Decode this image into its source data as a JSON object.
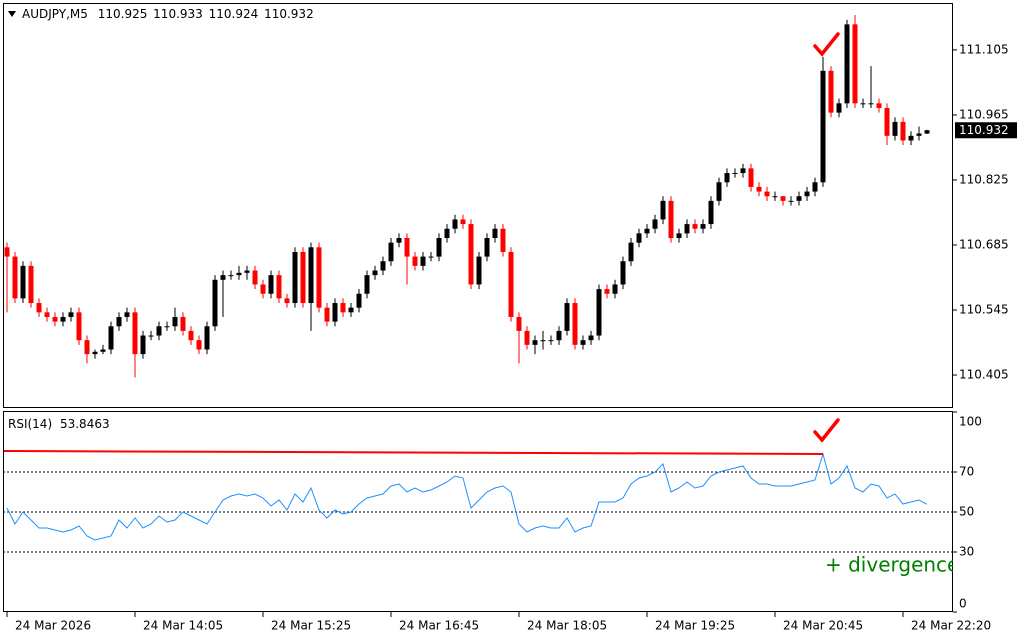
{
  "chart_data": {
    "type": "candlestick",
    "symbol": "AUDJPY,M5",
    "categories": [
      "24 Mar 2026",
      null,
      null,
      null,
      null,
      null,
      null,
      null,
      null,
      null,
      null,
      null,
      null,
      null,
      null,
      null,
      "24 Mar 14:05",
      null,
      null,
      null,
      null,
      null,
      null,
      null,
      null,
      null,
      null,
      null,
      null,
      null,
      null,
      null,
      "24 Mar 15:25",
      null,
      null,
      null,
      null,
      null,
      null,
      null,
      null,
      null,
      null,
      null,
      null,
      null,
      null,
      null,
      "24 Mar 16:45",
      null,
      null,
      null,
      null,
      null,
      null,
      null,
      null,
      null,
      null,
      null,
      null,
      null,
      null,
      null,
      "24 Mar 18:05",
      null,
      null,
      null,
      null,
      null,
      null,
      null,
      null,
      null,
      null,
      null,
      null,
      null,
      null,
      null,
      "24 Mar 19:25",
      null,
      null,
      null,
      null,
      null,
      null,
      null,
      null,
      null,
      null,
      null,
      null,
      null,
      null,
      null,
      "24 Mar 20:45",
      null,
      null,
      null,
      null,
      null,
      null,
      null,
      null,
      null,
      null,
      null,
      null,
      null,
      null,
      null,
      "24 Mar 22:20",
      null,
      null,
      null
    ],
    "open": [
      110.68,
      110.66,
      110.57,
      110.64,
      110.56,
      110.54,
      110.53,
      110.52,
      110.53,
      110.54,
      110.48,
      110.45,
      110.455,
      110.46,
      110.51,
      110.53,
      110.54,
      110.45,
      110.49,
      110.49,
      110.51,
      110.51,
      110.53,
      110.5,
      110.48,
      110.46,
      110.51,
      110.61,
      110.62,
      110.62,
      110.625,
      110.63,
      110.6,
      110.58,
      110.62,
      110.57,
      110.56,
      110.67,
      110.56,
      110.68,
      110.55,
      110.52,
      110.56,
      110.54,
      110.55,
      110.58,
      110.62,
      110.63,
      110.65,
      110.69,
      110.7,
      110.66,
      110.64,
      110.66,
      110.66,
      110.7,
      110.72,
      110.74,
      110.73,
      110.6,
      110.66,
      110.7,
      110.72,
      110.67,
      110.53,
      110.5,
      110.47,
      110.48,
      110.48,
      110.48,
      110.5,
      110.56,
      110.47,
      110.48,
      110.49,
      110.59,
      110.58,
      110.6,
      110.65,
      110.69,
      110.71,
      110.72,
      110.74,
      110.78,
      110.7,
      110.71,
      110.73,
      110.72,
      110.73,
      110.78,
      110.82,
      110.84,
      110.84,
      110.85,
      110.81,
      110.8,
      110.79,
      110.79,
      110.78,
      110.78,
      110.79,
      110.8,
      110.82,
      111.06,
      110.97,
      110.99,
      111.16,
      110.99,
      110.99,
      110.99,
      110.98,
      110.92,
      110.95,
      110.91,
      110.92,
      110.925
    ],
    "high": [
      110.69,
      110.67,
      110.65,
      110.65,
      110.57,
      110.55,
      110.54,
      110.54,
      110.55,
      110.55,
      110.49,
      110.46,
      110.47,
      110.52,
      110.54,
      110.55,
      110.55,
      110.5,
      110.5,
      110.52,
      110.52,
      110.55,
      110.54,
      110.51,
      110.49,
      110.52,
      110.62,
      110.63,
      110.63,
      110.64,
      110.64,
      110.64,
      110.61,
      110.63,
      110.63,
      110.58,
      110.68,
      110.68,
      110.69,
      110.69,
      110.56,
      110.57,
      110.57,
      110.56,
      110.59,
      110.63,
      110.64,
      110.66,
      110.7,
      110.71,
      110.71,
      110.67,
      110.67,
      110.67,
      110.71,
      110.73,
      110.75,
      110.75,
      110.74,
      110.67,
      110.71,
      110.73,
      110.73,
      110.68,
      110.54,
      110.51,
      110.49,
      110.5,
      110.49,
      110.51,
      110.57,
      110.57,
      110.49,
      110.5,
      110.6,
      110.6,
      110.61,
      110.66,
      110.7,
      110.72,
      110.73,
      110.75,
      110.79,
      110.79,
      110.72,
      110.74,
      110.74,
      110.74,
      110.79,
      110.83,
      110.85,
      110.85,
      110.86,
      110.86,
      110.82,
      110.81,
      110.8,
      110.79,
      110.79,
      110.8,
      110.81,
      110.83,
      111.09,
      111.07,
      111.0,
      111.17,
      111.18,
      111.0,
      111.07,
      111.0,
      110.99,
      110.96,
      110.96,
      110.93,
      110.94,
      110.933
    ],
    "low": [
      110.54,
      110.56,
      110.56,
      110.55,
      110.53,
      110.52,
      110.51,
      110.51,
      110.52,
      110.47,
      110.43,
      110.44,
      110.45,
      110.45,
      110.5,
      110.52,
      110.4,
      110.44,
      110.48,
      110.48,
      110.5,
      110.5,
      110.49,
      110.47,
      110.45,
      110.45,
      110.5,
      110.53,
      110.61,
      110.61,
      110.61,
      110.59,
      110.57,
      110.57,
      110.56,
      110.55,
      110.55,
      110.55,
      110.5,
      110.54,
      110.51,
      110.51,
      110.53,
      110.53,
      110.54,
      110.57,
      110.61,
      110.62,
      110.64,
      110.68,
      110.6,
      110.63,
      110.63,
      110.65,
      110.65,
      110.69,
      110.71,
      110.72,
      110.59,
      110.59,
      110.65,
      110.69,
      110.66,
      110.52,
      110.43,
      110.46,
      110.45,
      110.46,
      110.47,
      110.47,
      110.49,
      110.46,
      110.46,
      110.47,
      110.48,
      110.57,
      110.57,
      110.59,
      110.64,
      110.68,
      110.7,
      110.71,
      110.73,
      110.69,
      110.69,
      110.7,
      110.71,
      110.71,
      110.72,
      110.77,
      110.81,
      110.83,
      110.83,
      110.8,
      110.79,
      110.78,
      110.78,
      110.77,
      110.77,
      110.77,
      110.78,
      110.79,
      110.81,
      110.96,
      110.96,
      110.98,
      110.98,
      110.98,
      110.98,
      110.97,
      110.9,
      110.91,
      110.9,
      110.9,
      110.91,
      110.924
    ],
    "close": [
      110.66,
      110.57,
      110.64,
      110.56,
      110.54,
      110.53,
      110.52,
      110.53,
      110.54,
      110.48,
      110.45,
      110.455,
      110.46,
      110.51,
      110.53,
      110.54,
      110.45,
      110.49,
      110.49,
      110.51,
      110.51,
      110.53,
      110.5,
      110.48,
      110.46,
      110.51,
      110.61,
      110.62,
      110.62,
      110.625,
      110.63,
      110.6,
      110.58,
      110.62,
      110.57,
      110.56,
      110.67,
      110.56,
      110.68,
      110.55,
      110.52,
      110.56,
      110.54,
      110.55,
      110.58,
      110.62,
      110.63,
      110.65,
      110.69,
      110.7,
      110.66,
      110.64,
      110.66,
      110.66,
      110.7,
      110.72,
      110.74,
      110.73,
      110.6,
      110.66,
      110.7,
      110.72,
      110.67,
      110.53,
      110.5,
      110.47,
      110.48,
      110.48,
      110.48,
      110.5,
      110.56,
      110.47,
      110.48,
      110.49,
      110.59,
      110.58,
      110.6,
      110.65,
      110.69,
      110.71,
      110.72,
      110.74,
      110.78,
      110.7,
      110.71,
      110.73,
      110.72,
      110.73,
      110.78,
      110.82,
      110.84,
      110.84,
      110.85,
      110.81,
      110.8,
      110.79,
      110.79,
      110.78,
      110.78,
      110.79,
      110.8,
      110.82,
      111.06,
      110.97,
      110.99,
      111.16,
      110.99,
      110.99,
      110.99,
      110.98,
      110.92,
      110.95,
      110.91,
      110.92,
      110.925,
      110.932
    ],
    "up_color": "#000000",
    "down_color": "#ff0000",
    "ylim": [
      110.334,
      111.206
    ],
    "yticks": [
      110.405,
      110.545,
      110.685,
      110.825,
      110.965,
      111.105
    ],
    "rsi": {
      "name": "RSI(14)",
      "color": "#1e90ff",
      "values": [
        52,
        44,
        50,
        46,
        42,
        42,
        41,
        40,
        41,
        43,
        38,
        36,
        37,
        38,
        46,
        42,
        47,
        42,
        44,
        48,
        45,
        46,
        50,
        48,
        46,
        44,
        50,
        56,
        58,
        59,
        58,
        59,
        57,
        53,
        56,
        51,
        59,
        55,
        62,
        51,
        47,
        51,
        49,
        50,
        54,
        57,
        58,
        59,
        63,
        64,
        60,
        62,
        60,
        61,
        63,
        65,
        68,
        67,
        52,
        56,
        60,
        62,
        63,
        60,
        44,
        40,
        42,
        43,
        42,
        42,
        47,
        40,
        42,
        43,
        55,
        55,
        55,
        57,
        64,
        67,
        68,
        70,
        74,
        60,
        62,
        65,
        62,
        63,
        68,
        70,
        71,
        72,
        73,
        67,
        64,
        64,
        63,
        63,
        63,
        64,
        65,
        66,
        79,
        64,
        67,
        73,
        62,
        60,
        64,
        63,
        57,
        59,
        54,
        55,
        56,
        53.8463
      ],
      "ylim": [
        0,
        100
      ],
      "yticks": [
        0,
        30,
        50,
        70,
        100
      ],
      "levels": [
        30,
        50,
        70
      ]
    },
    "divergence": {
      "label": "+ divergence",
      "color": "#008000",
      "line": {
        "x": [
          0,
          102
        ],
        "values": [
          80.5,
          79
        ],
        "color": "#ff0000"
      }
    }
  }
}
